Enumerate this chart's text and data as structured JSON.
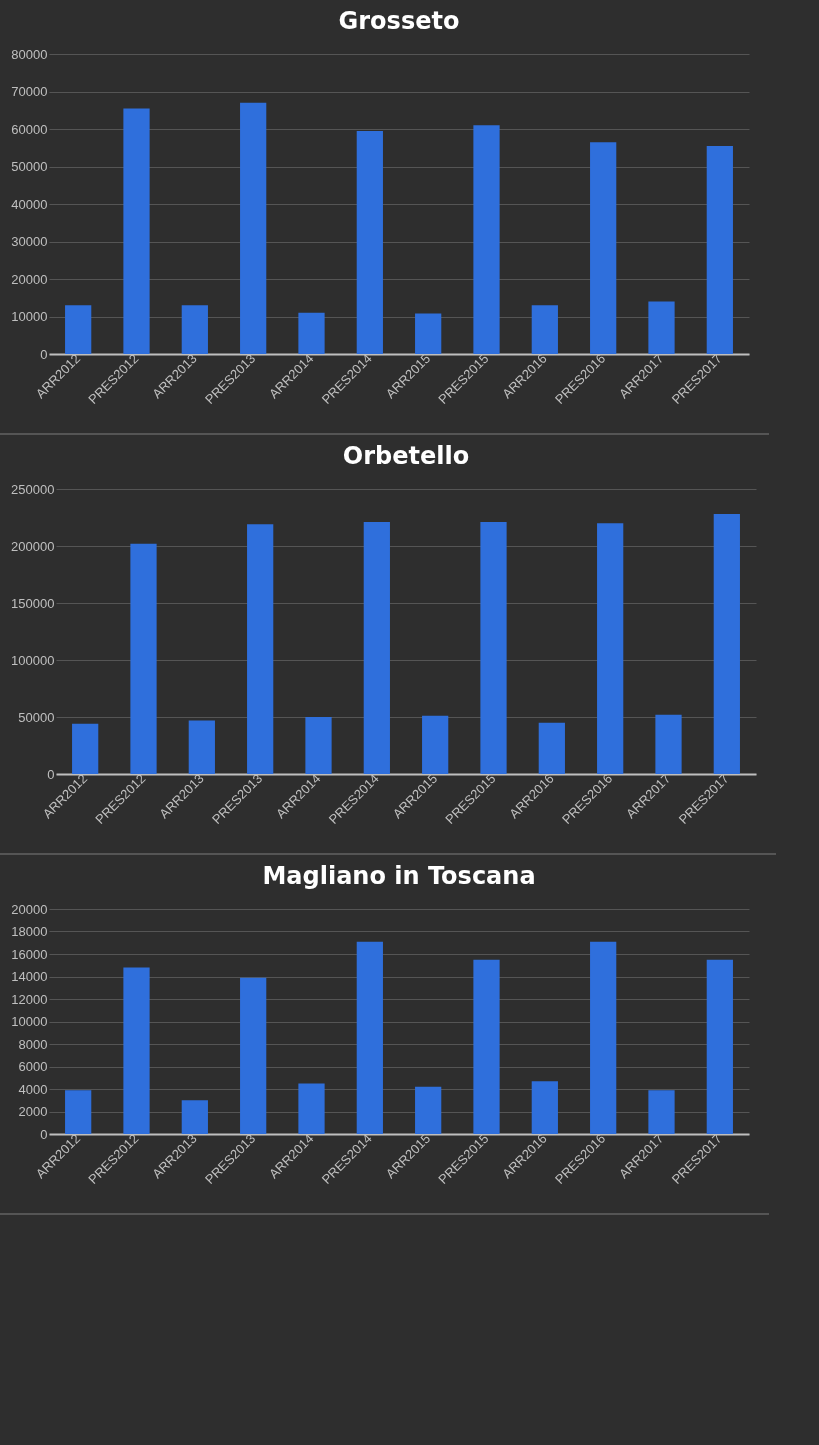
{
  "chart_data": [
    {
      "type": "bar",
      "title": "Grosseto",
      "categories": [
        "ARR2012",
        "PRES2012",
        "ARR2013",
        "PRES2013",
        "ARR2014",
        "PRES2014",
        "ARR2015",
        "PRES2015",
        "ARR2016",
        "PRES2016",
        "ARR2017",
        "PRES2017"
      ],
      "values": [
        13000,
        65500,
        13000,
        67000,
        11000,
        59500,
        10800,
        61000,
        13000,
        56500,
        14000,
        55500
      ],
      "color": "#2f6fdc",
      "ylim": [
        0,
        80000
      ],
      "yticks": [
        0,
        10000,
        20000,
        30000,
        40000,
        50000,
        60000,
        70000,
        80000
      ],
      "grid": "y"
    },
    {
      "type": "bar",
      "title": "Orbetello",
      "categories": [
        "ARR2012",
        "PRES2012",
        "ARR2013",
        "PRES2013",
        "ARR2014",
        "PRES2014",
        "ARR2015",
        "PRES2015",
        "ARR2016",
        "PRES2016",
        "ARR2017",
        "PRES2017"
      ],
      "values": [
        44000,
        202000,
        47000,
        219000,
        50000,
        221000,
        51000,
        221000,
        45000,
        220000,
        52000,
        228000
      ],
      "color": "#2f6fdc",
      "ylim": [
        0,
        250000
      ],
      "yticks": [
        0,
        50000,
        100000,
        150000,
        200000,
        250000
      ],
      "grid": "y"
    },
    {
      "type": "bar",
      "title": "Magliano in Toscana",
      "categories": [
        "ARR2012",
        "PRES2012",
        "ARR2013",
        "PRES2013",
        "ARR2014",
        "PRES2014",
        "ARR2015",
        "PRES2015",
        "ARR2016",
        "PRES2016",
        "ARR2017",
        "PRES2017"
      ],
      "values": [
        3900,
        14800,
        3000,
        13900,
        4500,
        17100,
        4200,
        15500,
        4700,
        17100,
        3900,
        15500
      ],
      "color": "#2f6fdc",
      "ylim": [
        0,
        20000
      ],
      "yticks": [
        0,
        2000,
        4000,
        6000,
        8000,
        10000,
        12000,
        14000,
        16000,
        18000,
        20000
      ],
      "grid": "y"
    }
  ]
}
